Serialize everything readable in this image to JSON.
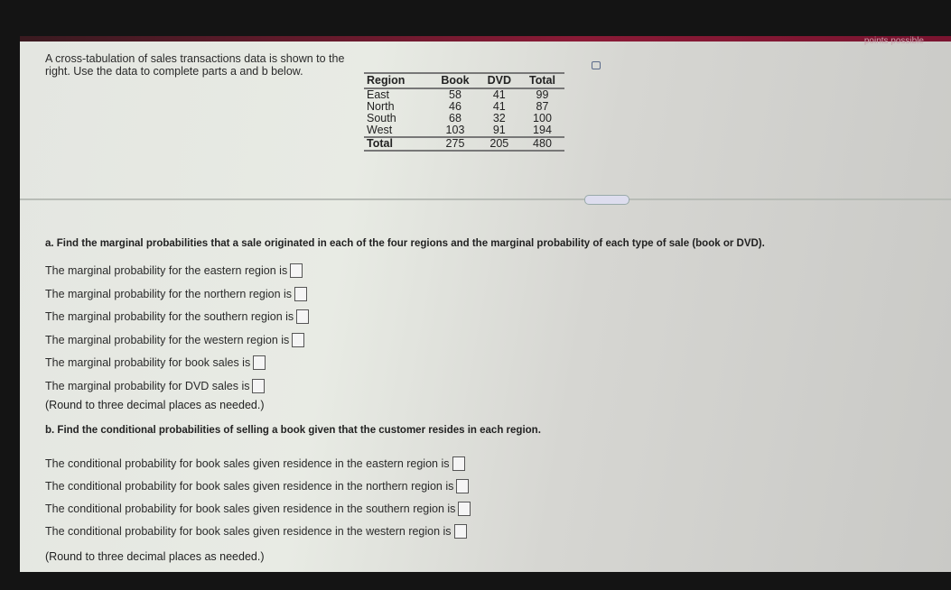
{
  "header": {
    "points_text": "points possible"
  },
  "intro": "A cross-tabulation of sales transactions data is shown to the right. Use the data to complete parts a and b below.",
  "table": {
    "headers": [
      "Region",
      "Book",
      "DVD",
      "Total"
    ],
    "rows": [
      [
        "East",
        "58",
        "41",
        "99"
      ],
      [
        "North",
        "46",
        "41",
        "87"
      ],
      [
        "South",
        "68",
        "32",
        "100"
      ],
      [
        "West",
        "103",
        "91",
        "194"
      ]
    ],
    "total": [
      "Total",
      "275",
      "205",
      "480"
    ]
  },
  "part_a": {
    "question": "a. Find the marginal probabilities that a sale originated in each of the four regions and the marginal probability of each type of sale (book or DVD).",
    "lines": [
      "The marginal probability for the eastern region is",
      "The marginal probability for the northern region is",
      "The marginal probability for the southern region is",
      "The marginal probability for the western region is",
      "The marginal probability for book sales is",
      "The marginal probability for DVD sales is"
    ],
    "note": "(Round to three decimal places as needed.)"
  },
  "part_b": {
    "question": "b. Find the conditional probabilities of selling a book given that the customer resides in each region.",
    "lines": [
      "The conditional probability for book sales given residence in the eastern region is",
      "The conditional probability for book sales given residence in the northern region is",
      "The conditional probability for book sales given residence in the southern region is",
      "The conditional probability for book sales given residence in the western region is"
    ],
    "note": "(Round to three decimal places as needed.)"
  }
}
